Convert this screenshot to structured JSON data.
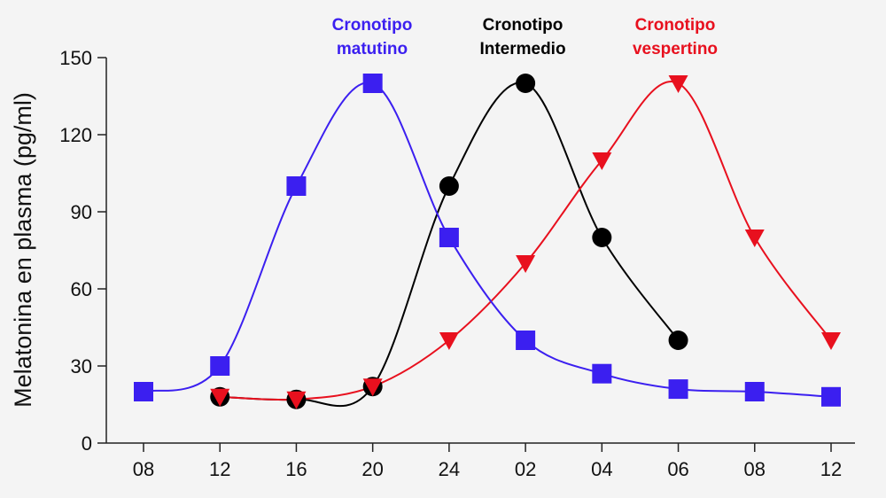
{
  "chart_data": {
    "type": "line",
    "title": "",
    "xlabel": "",
    "ylabel": "Melatonina en plasma (pg/ml)",
    "categories": [
      "08",
      "12",
      "16",
      "20",
      "24",
      "02",
      "04",
      "06",
      "08",
      "12"
    ],
    "ylim": [
      0,
      150
    ],
    "yticks": [
      0,
      30,
      60,
      90,
      120,
      150
    ],
    "grid": false,
    "legend": "top",
    "series": [
      {
        "name": "Cronotipo matutino",
        "label_lines": [
          "Cronotipo",
          "matutino"
        ],
        "color": "#3b1ff0",
        "marker": "square",
        "values": [
          20,
          30,
          100,
          140,
          80,
          40,
          27,
          21,
          20,
          18
        ]
      },
      {
        "name": "Cronotipo Intermedio",
        "label_lines": [
          "Cronotipo",
          "Intermedio"
        ],
        "color": "#000000",
        "marker": "circle",
        "values": [
          null,
          18,
          17,
          22,
          100,
          140,
          80,
          40,
          null,
          null
        ]
      },
      {
        "name": "Cronotipo vespertino",
        "label_lines": [
          "Cronotipo",
          "vespertino"
        ],
        "color": "#e8101e",
        "marker": "triangle-down",
        "values": [
          null,
          18,
          17,
          22,
          40,
          70,
          110,
          140,
          80,
          40
        ]
      }
    ]
  }
}
